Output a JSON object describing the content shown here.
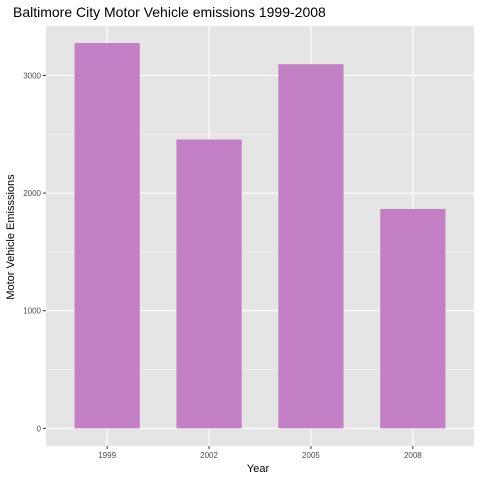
{
  "chart_data": {
    "type": "bar",
    "title": "Baltimore City Motor Vehicle emissions 1999-2008",
    "xlabel": "Year",
    "ylabel": "Motor Vehicle Emisssions",
    "categories": [
      "1999",
      "2002",
      "2005",
      "2008"
    ],
    "values": [
      3275,
      2455,
      3095,
      1865
    ],
    "ylim": [
      -150,
      3420
    ],
    "yticks": [
      0,
      1000,
      2000,
      3000
    ],
    "grid": true,
    "legend": "none",
    "colors": {
      "bar": "#c27fc4",
      "panel": "#e5e5e5",
      "grid_major": "#ffffff",
      "grid_minor": "#f2f2f2"
    }
  }
}
